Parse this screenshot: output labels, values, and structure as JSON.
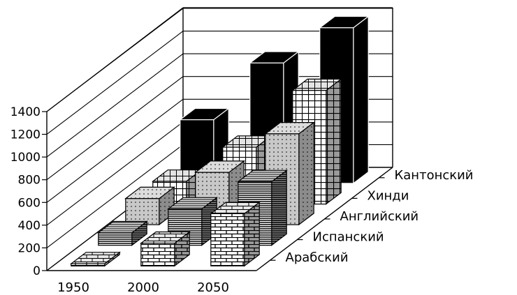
{
  "chart_data": {
    "type": "bar",
    "title": "",
    "xlabel": "",
    "ylabel": "",
    "ylim": [
      0,
      1400
    ],
    "yticks": [
      0,
      200,
      400,
      600,
      800,
      1000,
      1200,
      1400
    ],
    "grid": true,
    "style": "3d-grouped-bars",
    "categories": [
      "1950",
      "2000",
      "2050"
    ],
    "series": [
      {
        "name": "Арабский",
        "values": [
          20,
          200,
          460
        ],
        "pattern": "brick",
        "color": "#ffffff"
      },
      {
        "name": "Испанский",
        "values": [
          110,
          320,
          560
        ],
        "pattern": "hlines",
        "color": "#ffffff"
      },
      {
        "name": "Английский",
        "values": [
          230,
          460,
          800
        ],
        "pattern": "dots",
        "color": "#bbbbbb"
      },
      {
        "name": "Хинди",
        "values": [
          200,
          500,
          1000
        ],
        "pattern": "grid",
        "color": "#ffffff"
      },
      {
        "name": "Кантонский",
        "values": [
          560,
          1060,
          1370
        ],
        "pattern": "solid",
        "color": "#000000"
      }
    ]
  }
}
